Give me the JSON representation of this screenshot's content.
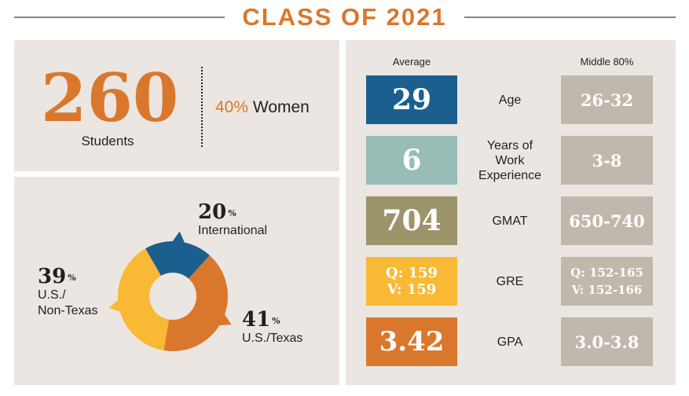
{
  "header": {
    "title": "CLASS OF 2021"
  },
  "students": {
    "count": "260",
    "label": "Students",
    "women_pct": "40%",
    "women_label": "Women"
  },
  "origin": {
    "segments": [
      {
        "name": "International",
        "pct": "20",
        "value": 20,
        "color": "#1b5f8f"
      },
      {
        "name": "U.S./Texas",
        "pct": "41",
        "value": 41,
        "color": "#d9782d"
      },
      {
        "name": "U.S./ Non-Texas",
        "line1": "U.S./",
        "line2": "Non-Texas",
        "pct": "39",
        "value": 39,
        "color": "#f9b934"
      }
    ],
    "pct_symbol": "%"
  },
  "stats": {
    "average_header": "Average",
    "middle_header": "Middle 80%",
    "rows": [
      {
        "label": "Age",
        "average": "29",
        "middle": "26-32",
        "color": "#1b5f8f"
      },
      {
        "label": "Years of Work Experience",
        "label_lines": [
          "Years of",
          "Work",
          "Experience"
        ],
        "average": "6",
        "middle": "3-8",
        "color": "#98bcb6"
      },
      {
        "label": "GMAT",
        "average": "704",
        "middle": "650-740",
        "color": "#9c946a"
      },
      {
        "label": "GRE",
        "average_q": "Q: 159",
        "average_v": "V: 159",
        "middle_q": "Q: 152-165",
        "middle_v": "V: 152-166",
        "color": "#f9b934"
      },
      {
        "label": "GPA",
        "average": "3.42",
        "middle": "3.0-3.8",
        "color": "#d9782d"
      }
    ]
  }
}
